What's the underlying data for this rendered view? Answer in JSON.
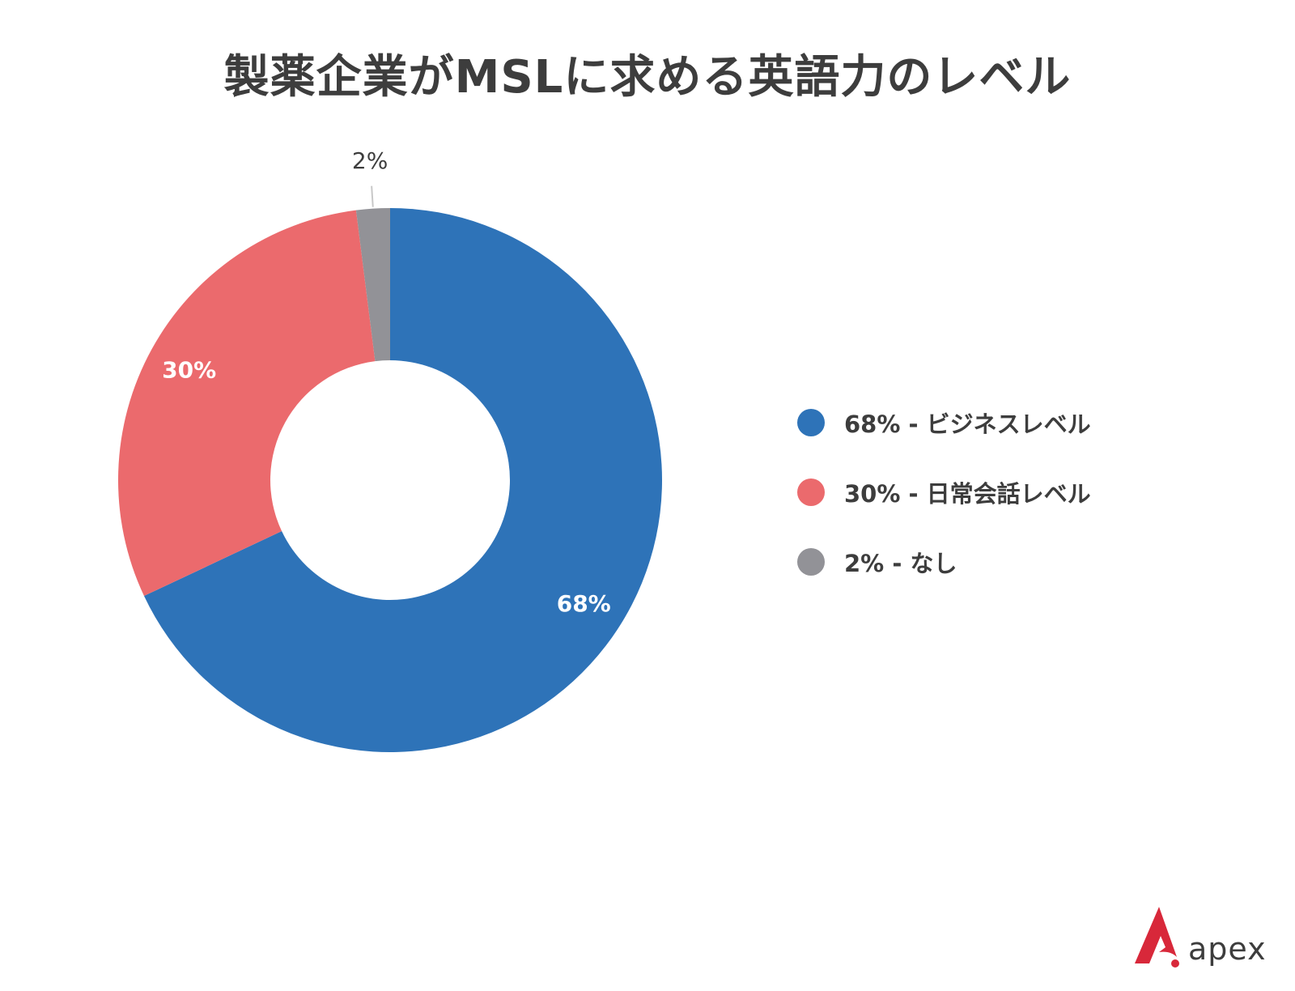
{
  "chart_data": {
    "type": "pie",
    "variant": "donut",
    "title": "製薬企業がMSLに求める英語力のレベル",
    "slices": [
      {
        "value": 68,
        "label": "68%",
        "legend": "68% - ビジネスレベル",
        "color": "#2e73b8",
        "label_color": "#ffffff"
      },
      {
        "value": 30,
        "label": "30%",
        "legend": "30% - 日常会話レベル",
        "color": "#eb6a6d",
        "label_color": "#ffffff"
      },
      {
        "value": 2,
        "label": "2%",
        "legend": "2% - なし",
        "color": "#929297",
        "label_color": "#3d3d3d"
      }
    ],
    "start": "top",
    "direction": "clockwise",
    "legend_position": "right"
  },
  "brand": {
    "name": "apex",
    "color": "#d8283a"
  }
}
